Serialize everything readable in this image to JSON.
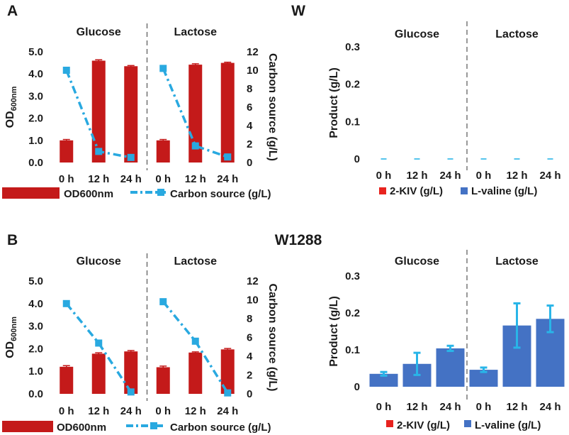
{
  "panel_labels": {
    "a": "A",
    "b": "B"
  },
  "strain_titles": {
    "top": "W",
    "bottom": "W1288"
  },
  "group_labels": {
    "glucose": "Glucose",
    "lactose": "Lactose"
  },
  "legend_labels": {
    "od": "OD600nm",
    "carbon": "Carbon source (g/L)",
    "kiv": "2-KIV (g/L)",
    "valine": "L-valine (g/L)"
  },
  "axis_labels": {
    "od_main": "OD",
    "od_sub": "600nm",
    "carbon": "Carbon source (g/L)",
    "product": "Product (g/L)"
  },
  "colors": {
    "od_bar": "#c41a1a",
    "carbon_line": "#29a9e0",
    "kiv": "#e8231f",
    "valine": "#4472c4",
    "valine_err": "#29b5e8",
    "divider": "#555555",
    "axis": "#444444"
  },
  "chart_data": [
    {
      "id": "A-growth",
      "type": "bar",
      "panel": "A",
      "categories": [
        "0 h",
        "12 h",
        "24 h",
        "0 h",
        "12 h",
        "24 h"
      ],
      "groups": [
        "Glucose",
        "Lactose"
      ],
      "ylabel": "OD600nm",
      "y2label": "Carbon source (g/L)",
      "ylim": [
        0,
        5
      ],
      "yticks": [
        "0.0",
        "1.0",
        "2.0",
        "3.0",
        "4.0",
        "5.0"
      ],
      "y2lim": [
        0,
        12
      ],
      "y2ticks": [
        "0",
        "2",
        "4",
        "6",
        "8",
        "10",
        "12"
      ],
      "series": [
        {
          "name": "OD600nm",
          "kind": "bar",
          "values": [
            1.0,
            4.6,
            4.35,
            1.0,
            4.42,
            4.5
          ],
          "errors": [
            0.04,
            0.04,
            0.03,
            0.04,
            0.04,
            0.03
          ]
        },
        {
          "name": "Carbon source (g/L)",
          "kind": "line",
          "axis": "right",
          "values": [
            10.0,
            1.2,
            0.55,
            10.2,
            1.8,
            0.6
          ]
        }
      ]
    },
    {
      "id": "W-product",
      "type": "bar",
      "panel": "W",
      "categories": [
        "0 h",
        "12 h",
        "24 h",
        "0 h",
        "12 h",
        "24 h"
      ],
      "groups": [
        "Glucose",
        "Lactose"
      ],
      "ylabel": "Product (g/L)",
      "ylim": [
        0,
        0.3
      ],
      "yticks": [
        "0",
        "0.1",
        "0.2",
        "0.3"
      ],
      "series": [
        {
          "name": "2-KIV (g/L)",
          "values": [
            0,
            0,
            0,
            0,
            0,
            0
          ]
        },
        {
          "name": "L-valine (g/L)",
          "values": [
            0,
            0,
            0,
            0,
            0,
            0
          ]
        }
      ]
    },
    {
      "id": "B-growth",
      "type": "bar",
      "panel": "B",
      "categories": [
        "0 h",
        "12 h",
        "24 h",
        "0 h",
        "12 h",
        "24 h"
      ],
      "groups": [
        "Glucose",
        "Lactose"
      ],
      "ylabel": "OD600nm",
      "y2label": "Carbon source (g/L)",
      "ylim": [
        0,
        5
      ],
      "yticks": [
        "0.0",
        "1.0",
        "2.0",
        "3.0",
        "4.0",
        "5.0"
      ],
      "y2lim": [
        0,
        12
      ],
      "y2ticks": [
        "0",
        "2",
        "4",
        "6",
        "8",
        "10",
        "12"
      ],
      "series": [
        {
          "name": "OD600nm",
          "kind": "bar",
          "values": [
            1.2,
            1.78,
            1.88,
            1.18,
            1.83,
            1.97
          ],
          "errors": [
            0.05,
            0.04,
            0.04,
            0.05,
            0.03,
            0.04
          ]
        },
        {
          "name": "Carbon source (g/L)",
          "kind": "line",
          "axis": "right",
          "values": [
            9.6,
            5.4,
            0.2,
            9.8,
            5.6,
            0.1
          ]
        }
      ]
    },
    {
      "id": "W1288-product",
      "type": "bar",
      "panel": "W1288",
      "categories": [
        "0 h",
        "12 h",
        "24 h",
        "0 h",
        "12 h",
        "24 h"
      ],
      "groups": [
        "Glucose",
        "Lactose"
      ],
      "ylabel": "Product (g/L)",
      "ylim": [
        0,
        0.3
      ],
      "yticks": [
        "0",
        "0.1",
        "0.2",
        "0.3"
      ],
      "series": [
        {
          "name": "2-KIV (g/L)",
          "values": [
            0,
            0,
            0,
            0,
            0,
            0
          ]
        },
        {
          "name": "L-valine (g/L)",
          "values": [
            0.035,
            0.062,
            0.104,
            0.046,
            0.166,
            0.184
          ],
          "errors": [
            0.005,
            0.03,
            0.007,
            0.006,
            0.06,
            0.036
          ]
        }
      ]
    }
  ]
}
